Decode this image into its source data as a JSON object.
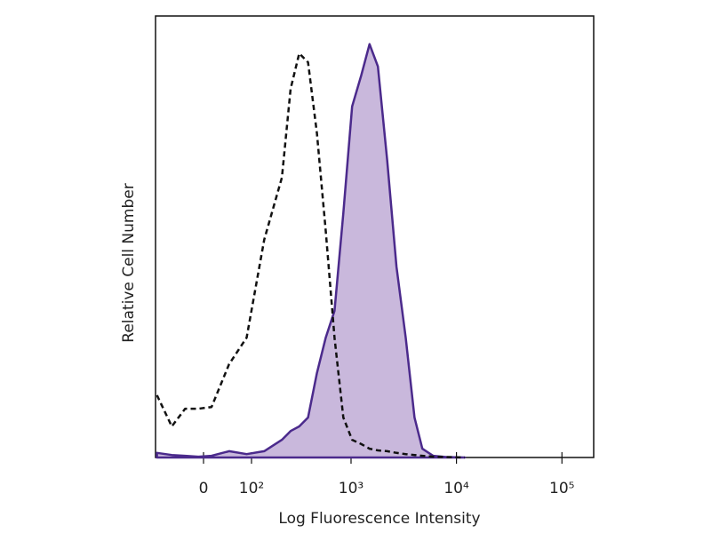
{
  "chart_data": {
    "type": "histogram-overlay",
    "xlabel": "Log Fluorescence Intensity",
    "ylabel": "Relative Cell Number",
    "xscale": "asinh",
    "xlim": [
      -100,
      200000
    ],
    "ylim": [
      0,
      105
    ],
    "xticks": [
      0,
      {
        "value": 100,
        "label": "10²"
      },
      {
        "value": 1000,
        "label": "10³"
      },
      {
        "value": 10000,
        "label": "10⁴"
      },
      {
        "value": 100000,
        "label": "10⁵"
      }
    ],
    "x": [
      -96,
      -60,
      -33,
      -9,
      14,
      47,
      87,
      140,
      214,
      262,
      318,
      388,
      472,
      573,
      696,
      844,
      1023,
      1250,
      1500,
      1800,
      2200,
      2700,
      3300,
      4000,
      4750,
      6000,
      8000,
      12000
    ],
    "series": [
      {
        "color": "#111111",
        "style": "dashed",
        "values": [
          14.8,
          7.4,
          11.6,
          11.6,
          12.0,
          22.2,
          28.5,
          51.8,
          66.6,
          87.7,
          96.1,
          94.0,
          77.1,
          53.9,
          28.5,
          9.5,
          4.2,
          3.2,
          2.1,
          1.7,
          1.5,
          1.1,
          0.8,
          0.6,
          0.4,
          0.2,
          0.1,
          0
        ]
      },
      {
        "color": "#4b2a8c",
        "fill": "#c9b8dc",
        "style": "solid",
        "values": [
          1.1,
          0.6,
          0.4,
          0.2,
          0.4,
          1.5,
          0.8,
          1.5,
          4.2,
          6.3,
          7.4,
          9.5,
          20.1,
          28.5,
          34.9,
          58.1,
          83.5,
          90.9,
          98.3,
          93.0,
          70.8,
          45.4,
          28.5,
          9.5,
          2.1,
          0.4,
          0.1,
          0
        ]
      }
    ]
  }
}
